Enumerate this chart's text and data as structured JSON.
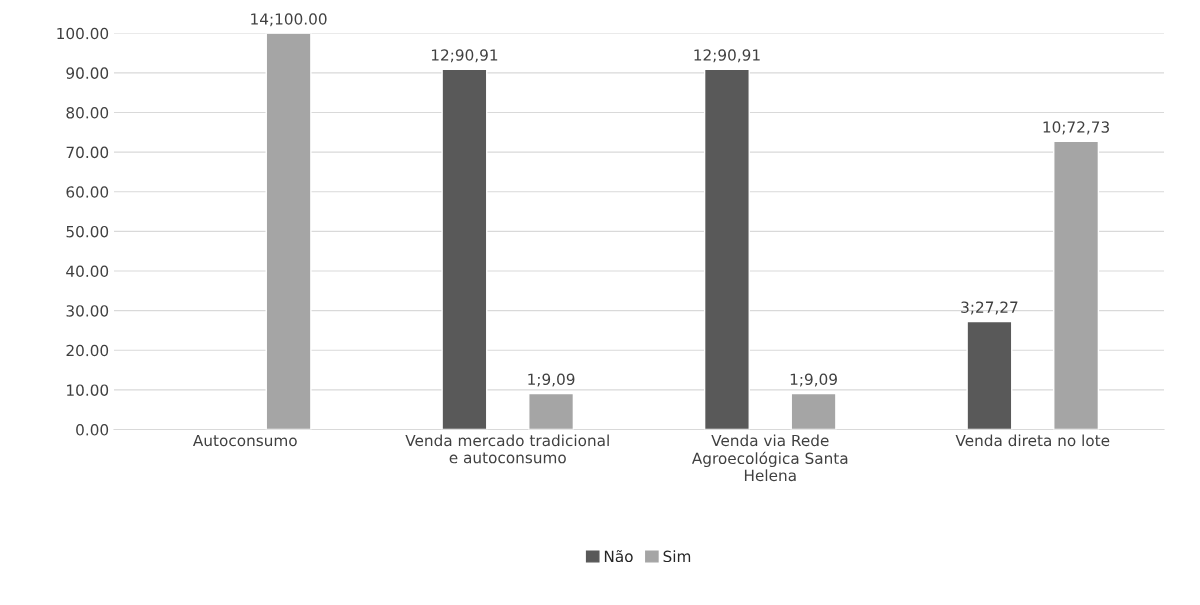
{
  "chart_data": {
    "type": "bar",
    "categories": [
      "Autoconsumo",
      "Venda mercado tradicional\ne autoconsumo",
      "Venda via Rede\nAgroecológica Santa\nHelena",
      "Venda direta no lote"
    ],
    "series": [
      {
        "name": "Não",
        "color": "#595959",
        "values": [
          null,
          90.91,
          90.91,
          27.27
        ],
        "value_labels": [
          null,
          "12;90,91",
          "12;90,91",
          "3;27,27"
        ]
      },
      {
        "name": "Sim",
        "color": "#a5a5a5",
        "values": [
          100,
          9.09,
          9.09,
          72.73
        ],
        "value_labels": [
          "14;100.00",
          "1;9,09",
          "1;9,09",
          "10;72,73"
        ]
      }
    ],
    "ylim": [
      0,
      100
    ],
    "yticks": [
      {
        "value": 0,
        "label": "0.00"
      },
      {
        "value": 10,
        "label": "10.00"
      },
      {
        "value": 20,
        "label": "20.00"
      },
      {
        "value": 30,
        "label": "30.00"
      },
      {
        "value": 40,
        "label": "40.00"
      },
      {
        "value": 50,
        "label": "50.00"
      },
      {
        "value": 60,
        "label": "60.00"
      },
      {
        "value": 70,
        "label": "70.00"
      },
      {
        "value": 80,
        "label": "80.00"
      },
      {
        "value": 90,
        "label": "90.00"
      },
      {
        "value": 100,
        "label": "100.00"
      }
    ],
    "grid": "y",
    "legend": "bottom"
  }
}
